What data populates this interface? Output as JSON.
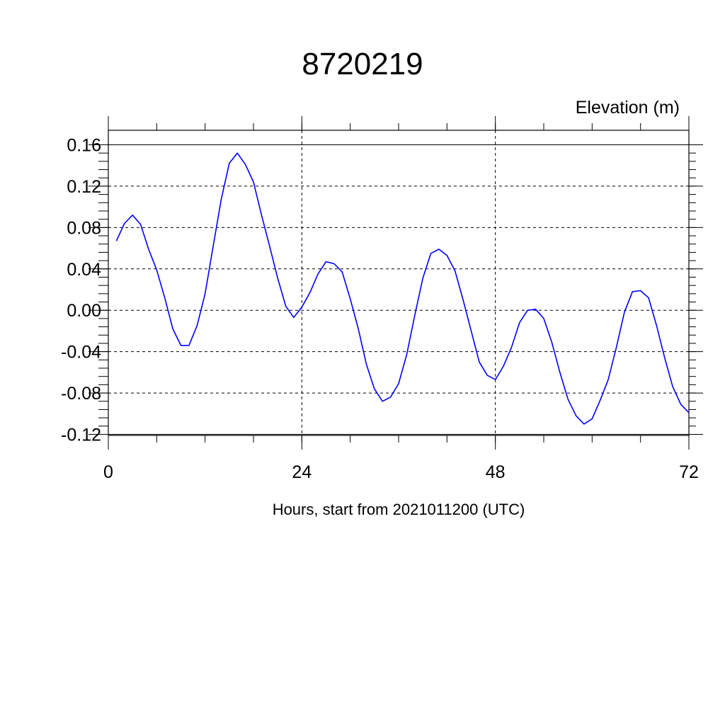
{
  "chart_data": {
    "type": "line",
    "title": "8720219",
    "ylabel": "Elevation (m)",
    "xlabel": "Hours, start from 2021011200 (UTC)",
    "xlim": [
      0,
      72
    ],
    "ylim": [
      -0.12,
      0.16
    ],
    "x_ticks": [
      0,
      24,
      48,
      72
    ],
    "x_tick_labels": [
      "0",
      "24",
      "48",
      "72"
    ],
    "y_ticks": [
      -0.12,
      -0.08,
      -0.04,
      0.0,
      0.04,
      0.08,
      0.12,
      0.16
    ],
    "y_tick_labels": [
      "-0.12",
      "-0.08",
      "-0.04",
      "0.00",
      "0.04",
      "0.08",
      "0.12",
      "0.16"
    ],
    "grid": true,
    "line_color": "#0000ff",
    "series": [
      {
        "x": [
          1,
          2,
          3,
          4,
          5,
          6,
          7,
          8,
          9,
          10,
          11,
          12,
          13,
          14,
          15,
          16,
          17,
          18,
          19,
          20,
          21,
          22,
          23,
          24,
          25,
          26,
          27,
          28,
          29,
          30,
          31,
          32,
          33,
          34,
          35,
          36,
          37,
          38,
          39,
          40,
          41,
          42,
          43,
          44,
          45,
          46,
          47,
          48,
          49,
          50,
          51,
          52,
          53,
          54,
          55,
          56,
          57,
          58,
          59,
          60,
          61,
          62,
          63,
          64,
          65,
          66,
          67,
          68,
          69,
          70,
          71,
          72
        ],
        "values": [
          0.067,
          0.084,
          0.092,
          0.083,
          0.059,
          0.039,
          0.012,
          -0.018,
          -0.034,
          -0.034,
          -0.015,
          0.016,
          0.062,
          0.107,
          0.142,
          0.152,
          0.141,
          0.124,
          0.092,
          0.062,
          0.031,
          0.004,
          -0.007,
          0.003,
          0.017,
          0.035,
          0.047,
          0.045,
          0.037,
          0.011,
          -0.018,
          -0.052,
          -0.076,
          -0.088,
          -0.084,
          -0.071,
          -0.043,
          -0.005,
          0.031,
          0.055,
          0.059,
          0.053,
          0.038,
          0.01,
          -0.02,
          -0.05,
          -0.063,
          -0.067,
          -0.054,
          -0.036,
          -0.012,
          0.0,
          0.001,
          -0.008,
          -0.031,
          -0.06,
          -0.086,
          -0.102,
          -0.11,
          -0.105,
          -0.087,
          -0.067,
          -0.036,
          -0.002,
          0.018,
          0.019,
          0.012,
          -0.015,
          -0.046,
          -0.074,
          -0.091,
          -0.099
        ]
      }
    ]
  }
}
